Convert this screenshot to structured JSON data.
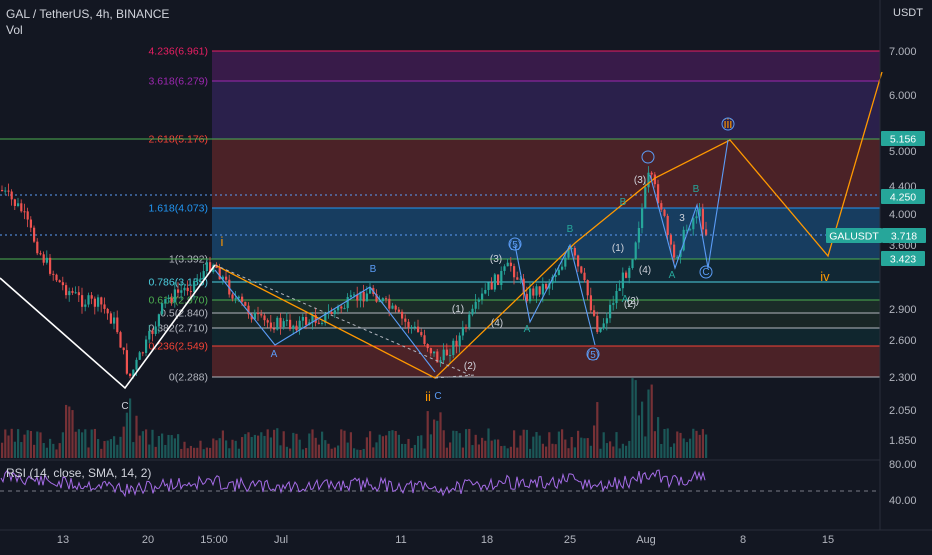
{
  "header": {
    "symbol_line": "GAL / TetherUS, 4h, BINANCE",
    "volume_label": "Vol",
    "currency": "USDT"
  },
  "rsi": {
    "label": "RSI (14, close, SMA, 14, 2)",
    "ticks": [
      "80.00",
      "40.00"
    ]
  },
  "chart_data": {
    "type": "candlestick",
    "price_ticks": [
      "7.000",
      "6.000",
      "5.000",
      "4.400",
      "4.000",
      "3.600",
      "2.900",
      "2.600",
      "2.300",
      "2.050",
      "1.850"
    ],
    "x_ticks": [
      "13",
      "20",
      "15:00",
      "Jul",
      "11",
      "18",
      "25",
      "Aug",
      "8",
      "15"
    ],
    "price_tags": [
      {
        "text": "5.156",
        "color": "#26a69a"
      },
      {
        "text": "4.250",
        "color": "#26a69a"
      },
      {
        "text": "GALUSDT",
        "color": "#26a69a"
      },
      {
        "text": "3.718",
        "color": "#26a69a"
      },
      {
        "text": "3.423",
        "color": "#26a69a"
      }
    ],
    "fib_levels": [
      {
        "label": "4.236(6.961)",
        "color": "#e91e63"
      },
      {
        "label": "3.618(6.279)",
        "color": "#9c27b0"
      },
      {
        "label": "2.618(5.176)",
        "color": "#f44336"
      },
      {
        "label": "1.618(4.073)",
        "color": "#2196f3"
      },
      {
        "label": "1(3.392)",
        "color": "#b2b5be"
      },
      {
        "label": "0.786(3.155)",
        "color": "#4dd0e1"
      },
      {
        "label": "0.618(2.970)",
        "color": "#4caf50"
      },
      {
        "label": "0.5(2.840)",
        "color": "#b2b5be"
      },
      {
        "label": "0.382(2.710)",
        "color": "#b2b5be"
      },
      {
        "label": "0.236(2.549)",
        "color": "#f44336"
      },
      {
        "label": "0(2.288)",
        "color": "#b2b5be"
      }
    ],
    "wave_labels": [
      {
        "text": "i",
        "color": "#ff9800"
      },
      {
        "text": "ii",
        "color": "#ff9800"
      },
      {
        "text": "iii",
        "color": "#ff9800"
      },
      {
        "text": "iv",
        "color": "#ff9800"
      },
      {
        "text": "C",
        "color": "#d1d4dc"
      },
      {
        "text": "C",
        "color": "#5b9cf6"
      },
      {
        "text": "A",
        "color": "#5b9cf6"
      },
      {
        "text": "B",
        "color": "#5b9cf6"
      },
      {
        "text": "(1)",
        "color": "#d1d4dc"
      },
      {
        "text": "(2)",
        "color": "#d1d4dc"
      },
      {
        "text": "(3)",
        "color": "#d1d4dc"
      },
      {
        "text": "(4)",
        "color": "#d1d4dc"
      },
      {
        "text": "(5)",
        "color": "#5b9cf6"
      },
      {
        "text": "A",
        "color": "#26a69a"
      },
      {
        "text": "B",
        "color": "#26a69a"
      },
      {
        "text": "(1)",
        "color": "#d1d4dc"
      },
      {
        "text": "(2)",
        "color": "#d1d4dc"
      },
      {
        "text": "(3)",
        "color": "#d1d4dc"
      },
      {
        "text": "(4)",
        "color": "#d1d4dc"
      },
      {
        "text": "A",
        "color": "#26a69a"
      },
      {
        "text": "B",
        "color": "#26a69a"
      },
      {
        "text": "(2)",
        "color": "#d1d4dc"
      },
      {
        "text": "(5)",
        "color": "#5b9cf6"
      },
      {
        "text": "A",
        "color": "#26a69a"
      },
      {
        "text": "B",
        "color": "#26a69a"
      },
      {
        "text": "C",
        "color": "#5b9cf6"
      },
      {
        "text": "3",
        "color": "#d1d4dc"
      }
    ],
    "colors": {
      "background": "#131722",
      "up": "#26a69a",
      "down": "#ef5350",
      "projection": "#ff9800",
      "abc": "#5b9cf6",
      "rsi": "#a56ce6"
    }
  }
}
